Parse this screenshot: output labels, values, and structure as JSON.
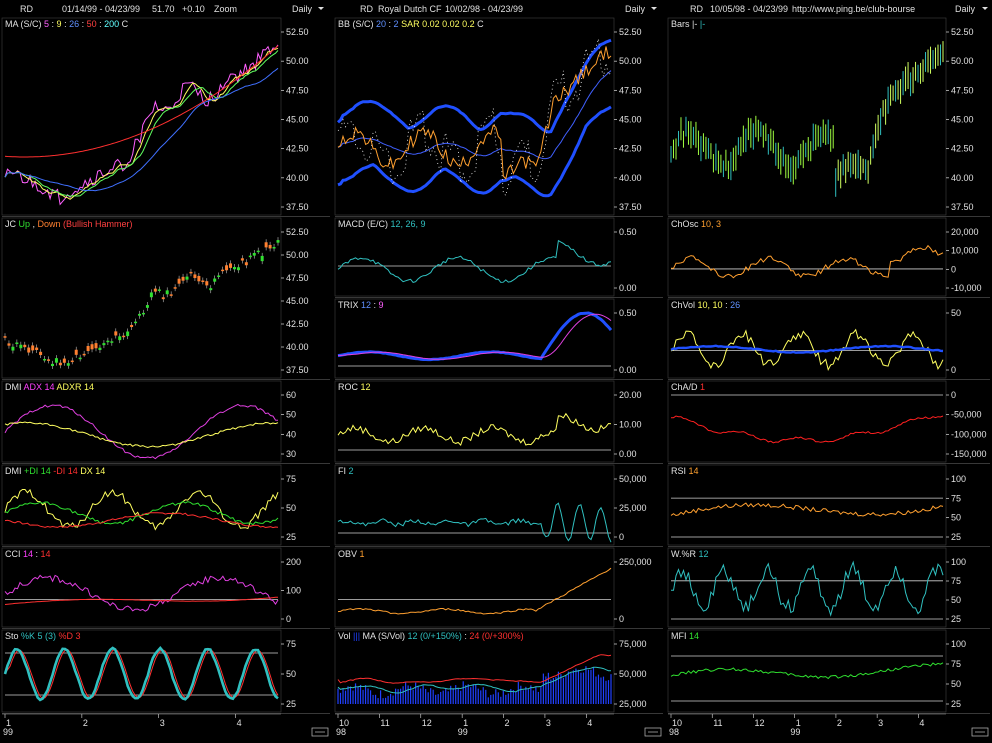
{
  "header": {
    "col1": {
      "symbol": "RD",
      "dates": "01/14/99 - 04/23/99",
      "price": "51.70",
      "change": "+0.10",
      "zoom": "Zoom",
      "period": "Daily"
    },
    "col2": {
      "symbol": "RD",
      "name": "Royal Dutch CF",
      "dates": "10/02/98 - 04/23/99",
      "period": "Daily"
    },
    "col3": {
      "symbol": "RD",
      "dates": "10/05/98 - 04/23/99",
      "url": "http://www.ping.be/club-bourse",
      "period": "Daily"
    }
  },
  "colors": {
    "background": "#000000",
    "grid": "#c8c8c8",
    "text": "#e0e0e0",
    "blue": "#1e40ff",
    "red": "#e01010",
    "yellow": "#ffff60",
    "orange": "#ffa030",
    "cyan": "#30c0c0",
    "magenta": "#e020e0",
    "green": "#30e030"
  },
  "x_axes": {
    "col1": {
      "ticks": [
        "1",
        "2",
        "3",
        "4"
      ],
      "year": "99"
    },
    "col2": {
      "ticks": [
        "10",
        "11",
        "12",
        "1",
        "2",
        "3",
        "4"
      ],
      "year_left": "98",
      "year_right": "99"
    },
    "col3": {
      "ticks": [
        "10",
        "11",
        "12",
        "1",
        "2",
        "3",
        "4"
      ],
      "year_left": "98",
      "year_right": "99"
    }
  },
  "chart_data": [
    {
      "id": "ma",
      "type": "line",
      "legend": [
        {
          "text": "MA (S/C)",
          "color": "#e0e0e0"
        },
        {
          "text": "5",
          "color": "#ff60ff"
        },
        {
          "text": ":",
          "color": "#e0e0e0"
        },
        {
          "text": "9",
          "color": "#ffff60"
        },
        {
          "text": ":",
          "color": "#e0e0e0"
        },
        {
          "text": "26",
          "color": "#6090ff"
        },
        {
          "text": ":",
          "color": "#e0e0e0"
        },
        {
          "text": "50",
          "color": "#ff4040"
        },
        {
          "text": ":",
          "color": "#e0e0e0"
        },
        {
          "text": "200",
          "color": "#60ffff"
        },
        {
          "text": "C",
          "color": "#e0e0e0"
        }
      ],
      "yticks": [
        "52.50",
        "50.00",
        "47.50",
        "45.00",
        "42.50",
        "40.00",
        "37.50"
      ]
    },
    {
      "id": "bb",
      "type": "line",
      "legend": [
        {
          "text": "BB (S/C)",
          "color": "#e0e0e0"
        },
        {
          "text": "20",
          "color": "#6090ff"
        },
        {
          "text": ":",
          "color": "#e0e0e0"
        },
        {
          "text": "2",
          "color": "#6090ff"
        },
        {
          "text": "SAR",
          "color": "#ffff60"
        },
        {
          "text": "0.02",
          "color": "#ffff60"
        },
        {
          "text": "0.02",
          "color": "#ffff60"
        },
        {
          "text": "0.2",
          "color": "#ffff60"
        },
        {
          "text": "C",
          "color": "#e0e0e0"
        }
      ],
      "yticks": [
        "52.50",
        "50.00",
        "47.50",
        "45.00",
        "42.50",
        "40.00",
        "37.50"
      ]
    },
    {
      "id": "bars",
      "type": "bar",
      "legend": [
        {
          "text": "Bars",
          "color": "#e0e0e0"
        },
        {
          "text": "|-",
          "color": "#e0e0e0"
        },
        {
          "text": "|-",
          "color": "#30c0c0"
        }
      ],
      "yticks": [
        "52.50",
        "50.00",
        "47.50",
        "45.00",
        "42.50",
        "40.00",
        "37.50"
      ]
    },
    {
      "id": "jc",
      "type": "bar",
      "legend": [
        {
          "text": "JC",
          "color": "#e0e0e0"
        },
        {
          "text": "Up",
          "color": "#30e030"
        },
        {
          "text": ",",
          "color": "#e0e0e0"
        },
        {
          "text": "Down",
          "color": "#ff8030"
        },
        {
          "text": "(Bullish Hammer)",
          "color": "#ff4040"
        }
      ],
      "yticks": [
        "52.50",
        "50.00",
        "47.50",
        "45.00",
        "42.50",
        "40.00",
        "37.50"
      ]
    },
    {
      "id": "macd",
      "type": "line",
      "legend": [
        {
          "text": "MACD (E/C)",
          "color": "#e0e0e0"
        },
        {
          "text": "12, 26, 9",
          "color": "#30c0c0"
        }
      ],
      "yticks": [
        "0.50",
        "0.00"
      ]
    },
    {
      "id": "chosc",
      "type": "line",
      "legend": [
        {
          "text": "ChOsc",
          "color": "#e0e0e0"
        },
        {
          "text": "10, 3",
          "color": "#ffa030"
        }
      ],
      "yticks": [
        "20,000",
        "10,000",
        "0",
        "-10,000"
      ]
    },
    {
      "id": "trix",
      "type": "line",
      "legend": [
        {
          "text": "TRIX",
          "color": "#e0e0e0"
        },
        {
          "text": "12",
          "color": "#6090ff"
        },
        {
          "text": ":",
          "color": "#e0e0e0"
        },
        {
          "text": "9",
          "color": "#ff60ff"
        }
      ],
      "yticks": [
        "0.50",
        "0.00"
      ]
    },
    {
      "id": "chvol",
      "type": "line",
      "legend": [
        {
          "text": "ChVol",
          "color": "#e0e0e0"
        },
        {
          "text": "10, 10",
          "color": "#ffff60"
        },
        {
          "text": ":",
          "color": "#e0e0e0"
        },
        {
          "text": "26",
          "color": "#6090ff"
        }
      ],
      "yticks": [
        "50",
        "0"
      ]
    },
    {
      "id": "dmi1",
      "type": "line",
      "legend": [
        {
          "text": "DMI",
          "color": "#e0e0e0"
        },
        {
          "text": "ADX 14",
          "color": "#ff40ff"
        },
        {
          "text": "ADXR 14",
          "color": "#ffff60"
        }
      ],
      "yticks": [
        "60",
        "50",
        "40",
        "30"
      ]
    },
    {
      "id": "roc",
      "type": "line",
      "legend": [
        {
          "text": "ROC",
          "color": "#e0e0e0"
        },
        {
          "text": "12",
          "color": "#ffff60"
        }
      ],
      "yticks": [
        "20.00",
        "10.00",
        "0.00"
      ]
    },
    {
      "id": "chad",
      "type": "line",
      "legend": [
        {
          "text": "ChA/D",
          "color": "#e0e0e0"
        },
        {
          "text": "1",
          "color": "#ff3030"
        }
      ],
      "yticks": [
        "0",
        "-50,000",
        "-100,000",
        "-150,000"
      ]
    },
    {
      "id": "dmi2",
      "type": "line",
      "legend": [
        {
          "text": "DMI",
          "color": "#e0e0e0"
        },
        {
          "text": "+DI 14",
          "color": "#30e030"
        },
        {
          "text": "-DI 14",
          "color": "#ff3030"
        },
        {
          "text": "DX 14",
          "color": "#ffff60"
        }
      ],
      "yticks": [
        "75",
        "50",
        "25"
      ]
    },
    {
      "id": "fi",
      "type": "line",
      "legend": [
        {
          "text": "FI",
          "color": "#e0e0e0"
        },
        {
          "text": "2",
          "color": "#30c0c0"
        }
      ],
      "yticks": [
        "50,000",
        "25,000",
        "0"
      ]
    },
    {
      "id": "rsi",
      "type": "line",
      "legend": [
        {
          "text": "RSI",
          "color": "#e0e0e0"
        },
        {
          "text": "14",
          "color": "#ffa030"
        }
      ],
      "yticks": [
        "100",
        "75",
        "50",
        "25"
      ]
    },
    {
      "id": "cci",
      "type": "line",
      "legend": [
        {
          "text": "CCI",
          "color": "#e0e0e0"
        },
        {
          "text": "14",
          "color": "#ff40ff"
        },
        {
          "text": ":",
          "color": "#e0e0e0"
        },
        {
          "text": "14",
          "color": "#ff3030"
        }
      ],
      "yticks": [
        "200",
        "100",
        "0"
      ]
    },
    {
      "id": "obv",
      "type": "line",
      "legend": [
        {
          "text": "OBV",
          "color": "#e0e0e0"
        },
        {
          "text": "1",
          "color": "#ffa030"
        }
      ],
      "yticks": [
        "250,000",
        "0"
      ]
    },
    {
      "id": "wr",
      "type": "line",
      "legend": [
        {
          "text": "W.%R",
          "color": "#e0e0e0"
        },
        {
          "text": "12",
          "color": "#30c0c0"
        }
      ],
      "yticks": [
        "100",
        "75",
        "50",
        "25"
      ]
    },
    {
      "id": "sto",
      "type": "line",
      "legend": [
        {
          "text": "Sto",
          "color": "#e0e0e0"
        },
        {
          "text": "%K 5 (3)",
          "color": "#30c0c0"
        },
        {
          "text": "%D 3",
          "color": "#ff3030"
        }
      ],
      "yticks": [
        "75",
        "50",
        "25"
      ]
    },
    {
      "id": "vol",
      "type": "bar",
      "legend": [
        {
          "text": "Vol",
          "color": "#e0e0e0"
        },
        {
          "text": "|||",
          "color": "#1e40ff"
        },
        {
          "text": "MA (S/Vol)",
          "color": "#e0e0e0"
        },
        {
          "text": "12 (0/+150%)",
          "color": "#30c0c0"
        },
        {
          "text": ":",
          "color": "#e0e0e0"
        },
        {
          "text": "24 (0/+300%)",
          "color": "#ff3030"
        }
      ],
      "yticks": [
        "75,000",
        "50,000",
        "25,000"
      ]
    },
    {
      "id": "mfi",
      "type": "line",
      "legend": [
        {
          "text": "MFI",
          "color": "#e0e0e0"
        },
        {
          "text": "14",
          "color": "#30e030"
        }
      ],
      "yticks": [
        "100",
        "75",
        "50",
        "25"
      ]
    }
  ]
}
